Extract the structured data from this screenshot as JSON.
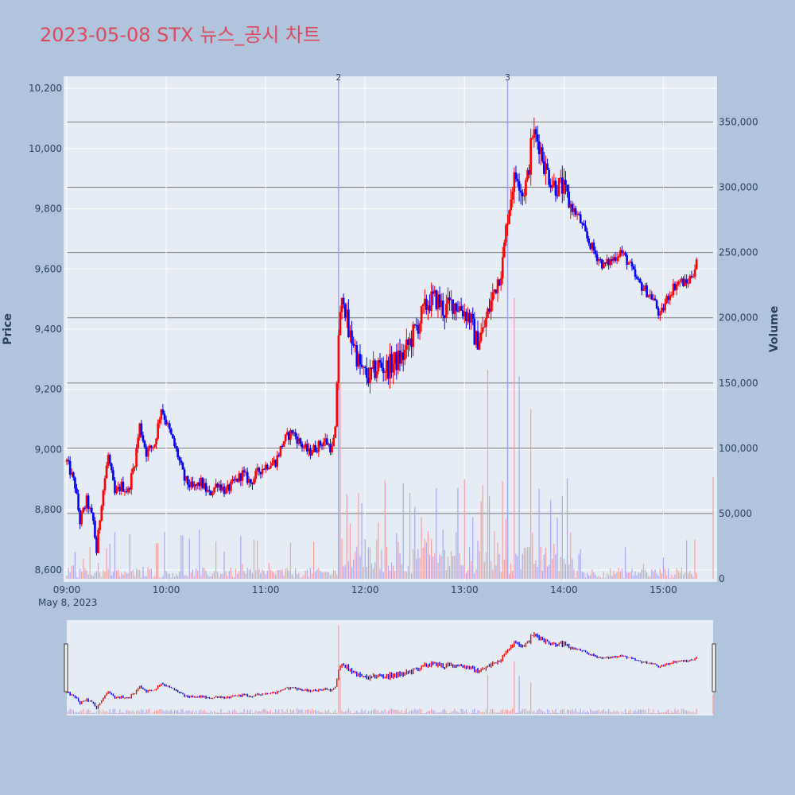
{
  "title": "2023-05-08 STX 뉴스_공시 차트",
  "colors": {
    "background": "#b0c4de",
    "plot_bg": "#e5ecf6",
    "up": "#ff0000",
    "down": "#0000ff",
    "up_volume": "#f4a0a0",
    "down_volume": "#a8a8f4",
    "title": "#e0485e",
    "text": "#2a3f5f"
  },
  "chart_data": {
    "type": "candlestick",
    "x_axis": {
      "ticks": [
        "09:00",
        "10:00",
        "11:00",
        "12:00",
        "13:00",
        "14:00",
        "15:00"
      ],
      "date_label": "May 8, 2023",
      "range": [
        "09:00",
        "15:30"
      ]
    },
    "y_axis_price": {
      "label": "Price",
      "range": [
        8560,
        10240
      ],
      "ticks": [
        "8,600",
        "8,800",
        "9,000",
        "9,200",
        "9,400",
        "9,600",
        "9,800",
        "10,000",
        "10,200"
      ]
    },
    "y_axis_volume": {
      "label": "Volume",
      "range": [
        0,
        385000
      ],
      "ticks": [
        "0",
        "50,000",
        "100,000",
        "150,000",
        "200,000",
        "250,000",
        "300,000",
        "350,000"
      ]
    },
    "grid": true,
    "news_markers": [
      {
        "label": "2",
        "time": "11:44"
      },
      {
        "label": "3",
        "time": "13:26"
      }
    ],
    "price_path": [
      [
        "09:00",
        8960
      ],
      [
        "09:05",
        8880
      ],
      [
        "09:08",
        8760
      ],
      [
        "09:12",
        8830
      ],
      [
        "09:16",
        8760
      ],
      [
        "09:18",
        8660
      ],
      [
        "09:21",
        8830
      ],
      [
        "09:25",
        8980
      ],
      [
        "09:29",
        8850
      ],
      [
        "09:33",
        8880
      ],
      [
        "09:37",
        8860
      ],
      [
        "09:41",
        8960
      ],
      [
        "09:44",
        9080
      ],
      [
        "09:48",
        8990
      ],
      [
        "09:53",
        9020
      ],
      [
        "09:57",
        9140
      ],
      [
        "10:02",
        9060
      ],
      [
        "10:07",
        8980
      ],
      [
        "10:11",
        8900
      ],
      [
        "10:16",
        8870
      ],
      [
        "10:21",
        8890
      ],
      [
        "10:26",
        8850
      ],
      [
        "10:31",
        8890
      ],
      [
        "10:36",
        8860
      ],
      [
        "10:41",
        8890
      ],
      [
        "10:46",
        8920
      ],
      [
        "10:51",
        8890
      ],
      [
        "10:56",
        8930
      ],
      [
        "11:01",
        8950
      ],
      [
        "11:06",
        8960
      ],
      [
        "11:11",
        9030
      ],
      [
        "11:16",
        9060
      ],
      [
        "11:21",
        9020
      ],
      [
        "11:26",
        8990
      ],
      [
        "11:31",
        9010
      ],
      [
        "11:36",
        9030
      ],
      [
        "11:40",
        9000
      ],
      [
        "11:42",
        9060
      ],
      [
        "11:44",
        9390
      ],
      [
        "11:47",
        9520
      ],
      [
        "11:50",
        9380
      ],
      [
        "11:53",
        9360
      ],
      [
        "11:56",
        9290
      ],
      [
        "11:59",
        9250
      ],
      [
        "12:03",
        9240
      ],
      [
        "12:08",
        9280
      ],
      [
        "12:13",
        9270
      ],
      [
        "12:18",
        9290
      ],
      [
        "12:23",
        9310
      ],
      [
        "12:28",
        9370
      ],
      [
        "12:33",
        9430
      ],
      [
        "12:38",
        9490
      ],
      [
        "12:43",
        9500
      ],
      [
        "12:48",
        9460
      ],
      [
        "12:53",
        9490
      ],
      [
        "12:58",
        9470
      ],
      [
        "13:03",
        9440
      ],
      [
        "13:07",
        9360
      ],
      [
        "13:11",
        9390
      ],
      [
        "13:15",
        9470
      ],
      [
        "13:19",
        9550
      ],
      [
        "13:23",
        9620
      ],
      [
        "13:26",
        9780
      ],
      [
        "13:29",
        9880
      ],
      [
        "13:32",
        9920
      ],
      [
        "13:35",
        9850
      ],
      [
        "13:38",
        9900
      ],
      [
        "13:41",
        10050
      ],
      [
        "13:45",
        10020
      ],
      [
        "13:49",
        9930
      ],
      [
        "13:54",
        9880
      ],
      [
        "13:59",
        9870
      ],
      [
        "14:04",
        9810
      ],
      [
        "14:09",
        9770
      ],
      [
        "14:14",
        9700
      ],
      [
        "14:19",
        9650
      ],
      [
        "14:24",
        9610
      ],
      [
        "14:29",
        9630
      ],
      [
        "14:34",
        9660
      ],
      [
        "14:39",
        9620
      ],
      [
        "14:44",
        9560
      ],
      [
        "14:49",
        9530
      ],
      [
        "14:54",
        9500
      ],
      [
        "14:58",
        9440
      ],
      [
        "15:02",
        9500
      ],
      [
        "15:06",
        9540
      ],
      [
        "15:10",
        9560
      ],
      [
        "15:14",
        9550
      ],
      [
        "15:18",
        9590
      ],
      [
        "15:20",
        9620
      ]
    ],
    "volume_peaks": [
      {
        "time": "11:44",
        "value": 365000
      },
      {
        "time": "11:45",
        "value": 150000
      },
      {
        "time": "13:14",
        "value": 160000
      },
      {
        "time": "13:30",
        "value": 215000
      },
      {
        "time": "13:33",
        "value": 155000
      },
      {
        "time": "13:40",
        "value": 130000
      },
      {
        "time": "15:30",
        "value": 78000
      }
    ]
  }
}
